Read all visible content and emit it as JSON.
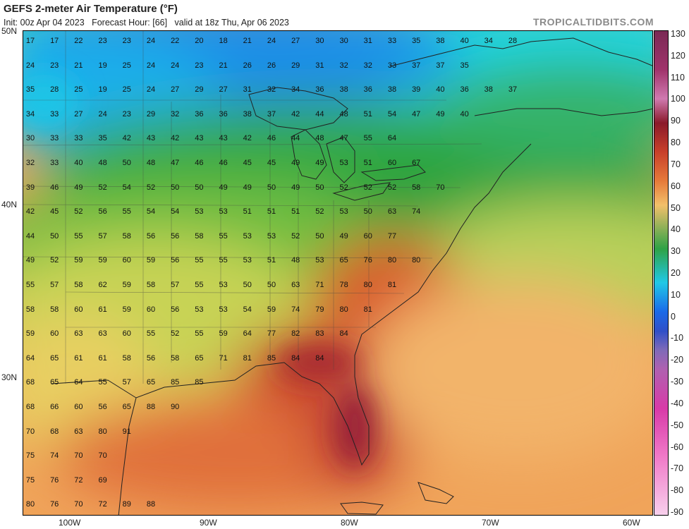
{
  "header": {
    "title": "GEFS 2-meter Air Temperature (°F)",
    "subtitle": "Init: 00z Apr 04 2023   Forecast Hour: [66]   valid at 18z Thu, Apr 06 2023",
    "brand": "TROPICALTIDBITS.COM"
  },
  "lat_labels": [
    "50N",
    "40N",
    "30N"
  ],
  "lon_labels": [
    "100W",
    "90W",
    "80W",
    "70W",
    "60W"
  ],
  "colorbar": {
    "ticks": [
      "130",
      "120",
      "110",
      "100",
      "90",
      "80",
      "70",
      "60",
      "50",
      "40",
      "30",
      "20",
      "10",
      "0",
      "-10",
      "-20",
      "-30",
      "-40",
      "-50",
      "-60",
      "-70",
      "-80",
      "-90"
    ]
  },
  "values": [
    [
      "17",
      "17",
      "22",
      "23",
      "23",
      "24",
      "22",
      "20",
      "18",
      "21",
      "24",
      "27",
      "30",
      "30",
      "31",
      "33",
      "35",
      "38",
      "40",
      "34",
      "28"
    ],
    [
      "24",
      "23",
      "21",
      "19",
      "25",
      "24",
      "24",
      "23",
      "21",
      "26",
      "26",
      "29",
      "31",
      "32",
      "32",
      "33",
      "37",
      "37",
      "35"
    ],
    [
      "35",
      "28",
      "25",
      "19",
      "25",
      "24",
      "27",
      "29",
      "27",
      "31",
      "32",
      "34",
      "36",
      "38",
      "36",
      "38",
      "39",
      "40",
      "36",
      "38",
      "37"
    ],
    [
      "34",
      "33",
      "27",
      "24",
      "23",
      "29",
      "32",
      "36",
      "36",
      "38",
      "37",
      "42",
      "44",
      "48",
      "51",
      "54",
      "47",
      "49",
      "40"
    ],
    [
      "30",
      "33",
      "33",
      "35",
      "42",
      "43",
      "42",
      "43",
      "43",
      "42",
      "46",
      "44",
      "48",
      "47",
      "55",
      "64"
    ],
    [
      "32",
      "33",
      "40",
      "48",
      "50",
      "48",
      "47",
      "46",
      "46",
      "45",
      "45",
      "49",
      "49",
      "53",
      "51",
      "60",
      "67"
    ],
    [
      "39",
      "46",
      "49",
      "52",
      "54",
      "52",
      "50",
      "50",
      "49",
      "49",
      "50",
      "49",
      "50",
      "52",
      "52",
      "52",
      "58",
      "70"
    ],
    [
      "42",
      "45",
      "52",
      "56",
      "55",
      "54",
      "54",
      "53",
      "53",
      "51",
      "51",
      "51",
      "52",
      "53",
      "50",
      "63",
      "74"
    ],
    [
      "44",
      "50",
      "55",
      "57",
      "58",
      "56",
      "56",
      "58",
      "55",
      "53",
      "53",
      "52",
      "50",
      "49",
      "60",
      "77"
    ],
    [
      "49",
      "52",
      "59",
      "59",
      "60",
      "59",
      "56",
      "55",
      "55",
      "53",
      "51",
      "48",
      "53",
      "65",
      "76",
      "80",
      "80"
    ],
    [
      "55",
      "57",
      "58",
      "62",
      "59",
      "58",
      "57",
      "55",
      "53",
      "50",
      "50",
      "63",
      "71",
      "78",
      "80",
      "81"
    ],
    [
      "58",
      "58",
      "60",
      "61",
      "59",
      "60",
      "56",
      "53",
      "53",
      "54",
      "59",
      "74",
      "79",
      "80",
      "81"
    ],
    [
      "59",
      "60",
      "63",
      "63",
      "60",
      "55",
      "52",
      "55",
      "59",
      "64",
      "77",
      "82",
      "83",
      "84"
    ],
    [
      "64",
      "65",
      "61",
      "61",
      "58",
      "56",
      "58",
      "65",
      "71",
      "81",
      "85",
      "84",
      "84"
    ],
    [
      "68",
      "65",
      "64",
      "55",
      "57",
      "65",
      "85",
      "85"
    ],
    [
      "68",
      "66",
      "60",
      "56",
      "65",
      "88",
      "90"
    ],
    [
      "70",
      "68",
      "63",
      "80",
      "91"
    ],
    [
      "75",
      "74",
      "70",
      "70"
    ],
    [
      "75",
      "76",
      "72",
      "69"
    ],
    [
      "80",
      "76",
      "70",
      "72",
      "89",
      "88"
    ]
  ]
}
